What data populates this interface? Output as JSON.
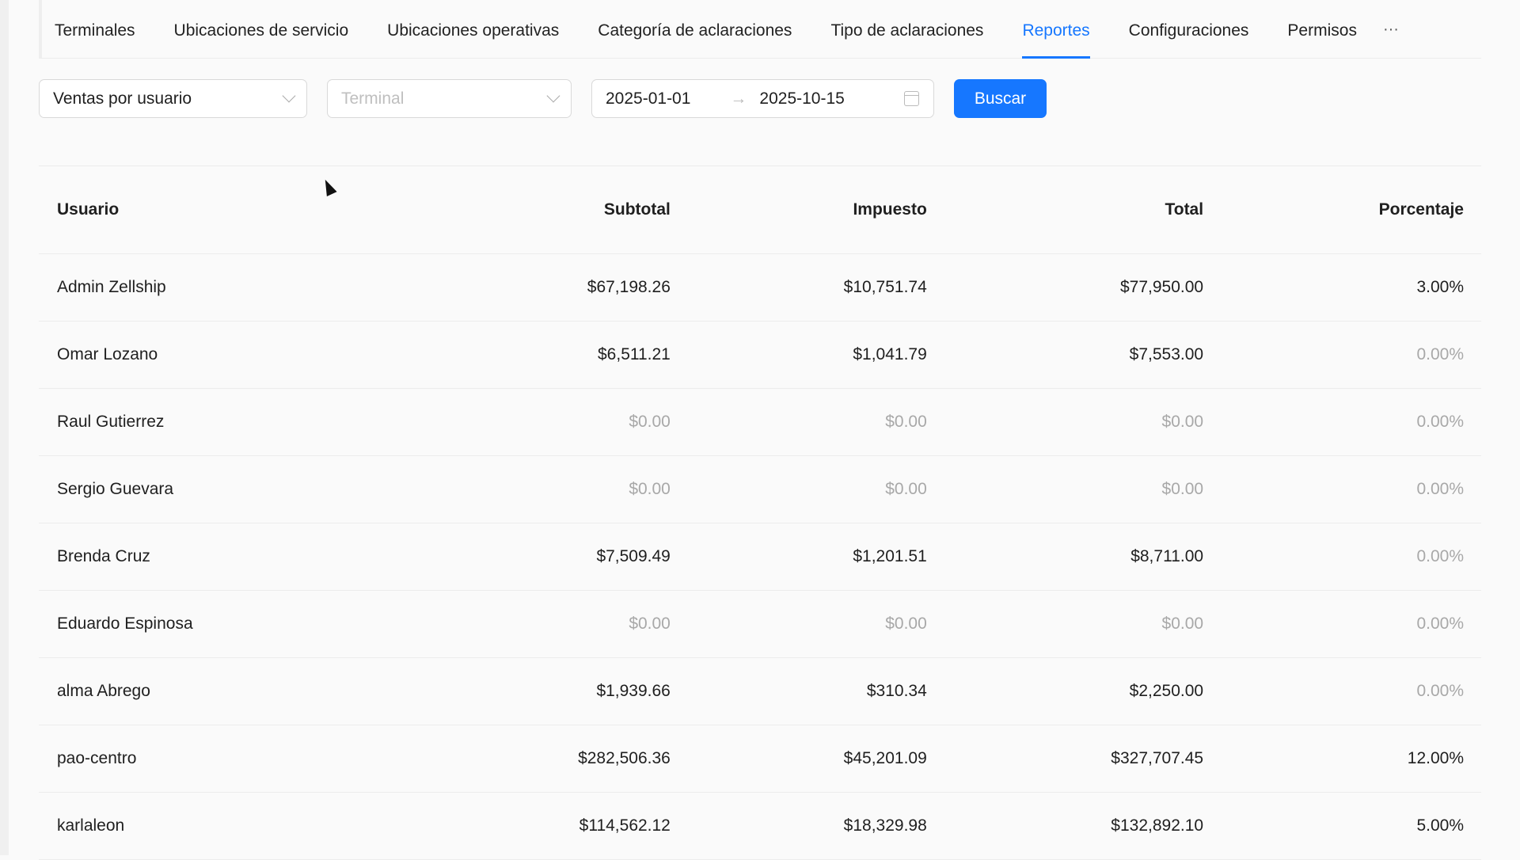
{
  "tabs": [
    {
      "label": "Terminales"
    },
    {
      "label": "Ubicaciones de servicio"
    },
    {
      "label": "Ubicaciones operativas"
    },
    {
      "label": "Categoría de aclaraciones"
    },
    {
      "label": "Tipo de aclaraciones"
    },
    {
      "label": "Reportes",
      "active": true
    },
    {
      "label": "Configuraciones"
    },
    {
      "label": "Permisos"
    }
  ],
  "more_label": "···",
  "filters": {
    "report_type": "Ventas por usuario",
    "terminal_placeholder": "Terminal",
    "date_start": "2025-01-01",
    "date_arrow": "→",
    "date_end": "2025-10-15",
    "search_label": "Buscar"
  },
  "accent": "#1677ff",
  "table": {
    "headers": [
      "Usuario",
      "Subtotal",
      "Impuesto",
      "Total",
      "Porcentaje"
    ],
    "rows": [
      [
        "Admin Zellship",
        "$67,198.26",
        "$10,751.74",
        "$77,950.00",
        "3.00%"
      ],
      [
        "Omar Lozano",
        "$6,511.21",
        "$1,041.79",
        "$7,553.00",
        "0.00%"
      ],
      [
        "Raul Gutierrez",
        "$0.00",
        "$0.00",
        "$0.00",
        "0.00%"
      ],
      [
        "Sergio Guevara",
        "$0.00",
        "$0.00",
        "$0.00",
        "0.00%"
      ],
      [
        "Brenda Cruz",
        "$7,509.49",
        "$1,201.51",
        "$8,711.00",
        "0.00%"
      ],
      [
        "Eduardo Espinosa",
        "$0.00",
        "$0.00",
        "$0.00",
        "0.00%"
      ],
      [
        "alma Abrego",
        "$1,939.66",
        "$310.34",
        "$2,250.00",
        "0.00%"
      ],
      [
        "pao-centro",
        "$282,506.36",
        "$45,201.09",
        "$327,707.45",
        "12.00%"
      ],
      [
        "karlaleon",
        "$114,562.12",
        "$18,329.98",
        "$132,892.10",
        "5.00%"
      ]
    ]
  }
}
